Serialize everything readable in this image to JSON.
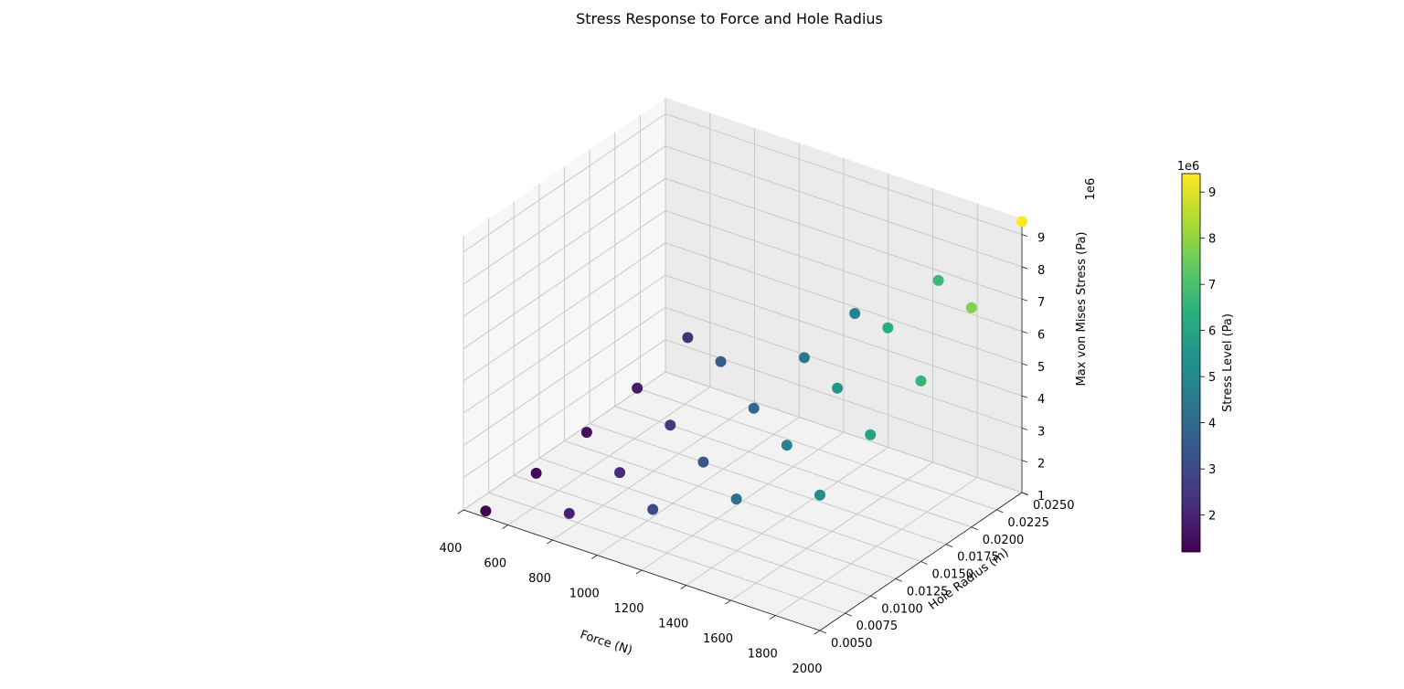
{
  "chart_data": {
    "type": "scatter",
    "projection": "3d",
    "title": "Stress Response to Force and Hole Radius",
    "xlabel": "Force (N)",
    "ylabel": "Hole Radius (m)",
    "zlabel": "Max von Mises Stress (Pa)",
    "z_offset_label": "1e6",
    "xlim": [
      400,
      2000
    ],
    "ylim": [
      0.005,
      0.025
    ],
    "zlim": [
      1,
      9.5
    ],
    "xticks": [
      "400",
      "600",
      "800",
      "1000",
      "1200",
      "1400",
      "1600",
      "1800",
      "2000"
    ],
    "yticks": [
      "0.0050",
      "0.0075",
      "0.0100",
      "0.0125",
      "0.0150",
      "0.0175",
      "0.0200",
      "0.0225",
      "0.0250"
    ],
    "zticks": [
      "1",
      "2",
      "3",
      "4",
      "5",
      "6",
      "7",
      "8",
      "9"
    ],
    "grid": true,
    "colormap": "viridis",
    "colorbar": {
      "label": "Stress Level (Pa)",
      "offset_label": "1e6",
      "range": [
        1.2,
        9.4
      ],
      "ticks": [
        "2",
        "3",
        "4",
        "5",
        "6",
        "7",
        "8",
        "9"
      ]
    },
    "points": [
      {
        "x": 500,
        "y": 0.005,
        "z": 1.2
      },
      {
        "x": 500,
        "y": 0.01,
        "z": 1.3
      },
      {
        "x": 500,
        "y": 0.015,
        "z": 1.5
      },
      {
        "x": 500,
        "y": 0.02,
        "z": 1.8
      },
      {
        "x": 500,
        "y": 0.025,
        "z": 2.3
      },
      {
        "x": 875,
        "y": 0.005,
        "z": 2.0
      },
      {
        "x": 875,
        "y": 0.01,
        "z": 2.2
      },
      {
        "x": 875,
        "y": 0.015,
        "z": 2.6
      },
      {
        "x": 875,
        "y": 0.02,
        "z": 3.5
      },
      {
        "x": 1250,
        "y": 0.005,
        "z": 3.0
      },
      {
        "x": 1250,
        "y": 0.01,
        "z": 3.4
      },
      {
        "x": 1250,
        "y": 0.015,
        "z": 4.0
      },
      {
        "x": 1250,
        "y": 0.02,
        "z": 4.5
      },
      {
        "x": 1250,
        "y": 0.025,
        "z": 4.8
      },
      {
        "x": 1625,
        "y": 0.005,
        "z": 4.2
      },
      {
        "x": 1625,
        "y": 0.01,
        "z": 4.8
      },
      {
        "x": 1625,
        "y": 0.015,
        "z": 5.5
      },
      {
        "x": 1625,
        "y": 0.02,
        "z": 6.3
      },
      {
        "x": 1625,
        "y": 0.025,
        "z": 6.7
      },
      {
        "x": 2000,
        "y": 0.005,
        "z": 5.2
      },
      {
        "x": 2000,
        "y": 0.01,
        "z": 6.0
      },
      {
        "x": 2000,
        "y": 0.015,
        "z": 6.6
      },
      {
        "x": 2000,
        "y": 0.02,
        "z": 7.8
      },
      {
        "x": 2000,
        "y": 0.025,
        "z": 9.4
      }
    ]
  }
}
